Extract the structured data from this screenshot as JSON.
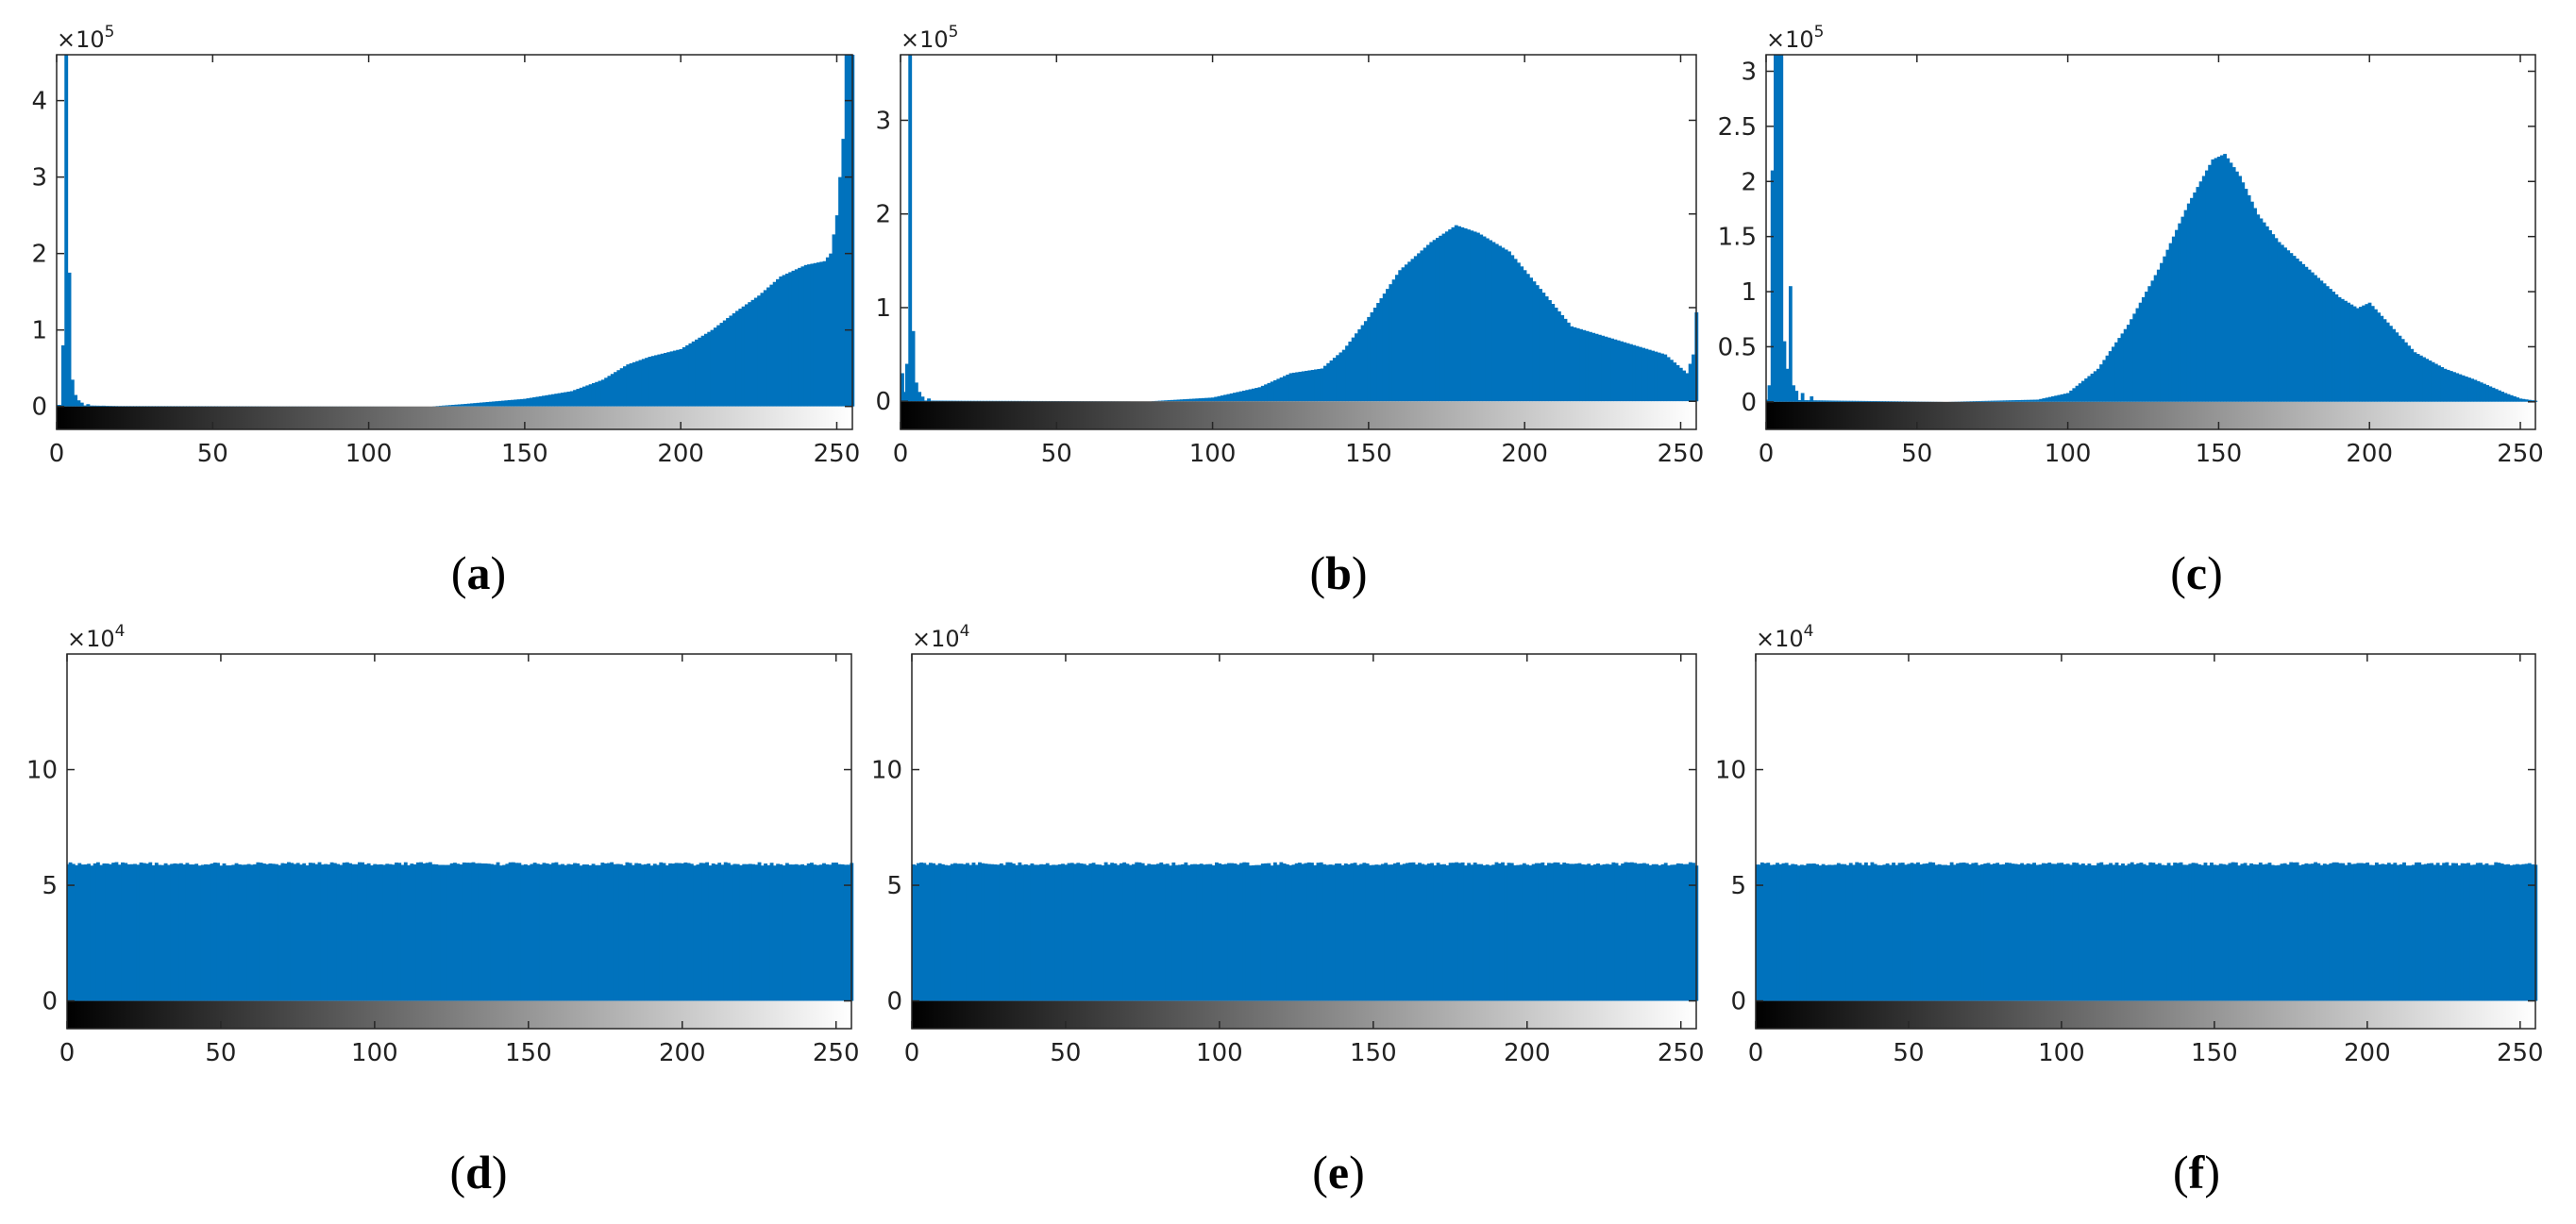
{
  "chart_data": [
    {
      "id": "a",
      "type": "bar",
      "caption_letter": "a",
      "multiplier": {
        "base": "×10",
        "exp": "5"
      },
      "xlim": [
        0,
        255
      ],
      "ylim": [
        -0.3,
        4.6
      ],
      "xticks": [
        0,
        50,
        100,
        150,
        200,
        250
      ],
      "yticks": [
        0,
        1,
        2,
        3,
        4
      ],
      "yticklabels": [
        "0",
        "1",
        "2",
        "3",
        "4"
      ],
      "color": "#0072BD",
      "peaks": [
        [
          2,
          0.8
        ],
        [
          3,
          4.6
        ],
        [
          4,
          1.75
        ],
        [
          5,
          0.35
        ],
        [
          6,
          0.15
        ],
        [
          7,
          0.08
        ],
        [
          8,
          0.05
        ],
        [
          10,
          0.03
        ],
        [
          15,
          0.01
        ]
      ],
      "curve": [
        [
          0,
          0.02
        ],
        [
          20,
          0.005
        ],
        [
          120,
          0.0
        ],
        [
          130,
          0.03
        ],
        [
          150,
          0.1
        ],
        [
          165,
          0.2
        ],
        [
          175,
          0.35
        ],
        [
          183,
          0.55
        ],
        [
          190,
          0.65
        ],
        [
          200,
          0.75
        ],
        [
          210,
          1.0
        ],
        [
          218,
          1.25
        ],
        [
          225,
          1.45
        ],
        [
          232,
          1.7
        ],
        [
          240,
          1.85
        ],
        [
          246,
          1.9
        ],
        [
          248,
          2.0
        ],
        [
          250,
          2.5
        ],
        [
          252,
          3.5
        ],
        [
          253,
          4.6
        ],
        [
          255,
          4.6
        ]
      ]
    },
    {
      "id": "b",
      "type": "bar",
      "caption_letter": "b",
      "multiplier": {
        "base": "×10",
        "exp": "5"
      },
      "xlim": [
        0,
        255
      ],
      "ylim": [
        -0.3,
        3.7
      ],
      "xticks": [
        0,
        50,
        100,
        150,
        200,
        250
      ],
      "yticks": [
        0,
        1,
        2,
        3
      ],
      "yticklabels": [
        "0",
        "1",
        "2",
        "3"
      ],
      "color": "#0072BD",
      "peaks": [
        [
          0,
          0.3
        ],
        [
          1,
          0.1
        ],
        [
          2,
          0.4
        ],
        [
          3,
          3.7
        ],
        [
          4,
          0.75
        ],
        [
          5,
          0.2
        ],
        [
          6,
          0.1
        ],
        [
          7,
          0.05
        ],
        [
          9,
          0.03
        ]
      ],
      "curve": [
        [
          0,
          0.01
        ],
        [
          20,
          0.005
        ],
        [
          80,
          0.0
        ],
        [
          100,
          0.04
        ],
        [
          115,
          0.15
        ],
        [
          125,
          0.3
        ],
        [
          135,
          0.35
        ],
        [
          142,
          0.55
        ],
        [
          150,
          0.9
        ],
        [
          160,
          1.4
        ],
        [
          170,
          1.7
        ],
        [
          178,
          1.88
        ],
        [
          185,
          1.8
        ],
        [
          195,
          1.6
        ],
        [
          205,
          1.2
        ],
        [
          215,
          0.8
        ],
        [
          225,
          0.7
        ],
        [
          235,
          0.6
        ],
        [
          245,
          0.5
        ],
        [
          252,
          0.3
        ],
        [
          254,
          0.5
        ],
        [
          255,
          0.95
        ]
      ]
    },
    {
      "id": "c",
      "type": "bar",
      "caption_letter": "c",
      "multiplier": {
        "base": "×10",
        "exp": "5"
      },
      "xlim": [
        0,
        255
      ],
      "ylim": [
        -0.25,
        3.15
      ],
      "xticks": [
        0,
        50,
        100,
        150,
        200,
        250
      ],
      "yticks": [
        0,
        0.5,
        1,
        1.5,
        2,
        2.5,
        3
      ],
      "yticklabels": [
        "0",
        "0.5",
        "1",
        "1.5",
        "2",
        "2.5",
        "3"
      ],
      "color": "#0072BD",
      "peaks": [
        [
          1,
          0.15
        ],
        [
          2,
          2.1
        ],
        [
          3,
          3.15
        ],
        [
          4,
          3.15
        ],
        [
          5,
          3.15
        ],
        [
          6,
          0.55
        ],
        [
          7,
          0.3
        ],
        [
          8,
          1.05
        ],
        [
          9,
          0.15
        ],
        [
          10,
          0.1
        ],
        [
          12,
          0.08
        ],
        [
          15,
          0.05
        ]
      ],
      "curve": [
        [
          0,
          0.02
        ],
        [
          25,
          0.01
        ],
        [
          60,
          0.0
        ],
        [
          90,
          0.02
        ],
        [
          100,
          0.08
        ],
        [
          110,
          0.3
        ],
        [
          120,
          0.7
        ],
        [
          130,
          1.2
        ],
        [
          140,
          1.8
        ],
        [
          148,
          2.2
        ],
        [
          152,
          2.25
        ],
        [
          157,
          2.05
        ],
        [
          163,
          1.7
        ],
        [
          170,
          1.45
        ],
        [
          180,
          1.2
        ],
        [
          190,
          0.95
        ],
        [
          196,
          0.85
        ],
        [
          200,
          0.9
        ],
        [
          205,
          0.75
        ],
        [
          215,
          0.45
        ],
        [
          225,
          0.3
        ],
        [
          235,
          0.2
        ],
        [
          245,
          0.08
        ],
        [
          250,
          0.03
        ],
        [
          255,
          0.01
        ]
      ]
    },
    {
      "id": "d",
      "type": "bar",
      "caption_letter": "d",
      "multiplier": {
        "base": "×10",
        "exp": "4"
      },
      "xlim": [
        0,
        255
      ],
      "ylim": [
        -1.2,
        15
      ],
      "xticks": [
        0,
        50,
        100,
        150,
        200,
        250
      ],
      "yticks": [
        0,
        5,
        10
      ],
      "yticklabels": [
        "0",
        "5",
        "10"
      ],
      "color": "#0072BD",
      "uniform_value": 6.0
    },
    {
      "id": "e",
      "type": "bar",
      "caption_letter": "e",
      "multiplier": {
        "base": "×10",
        "exp": "4"
      },
      "xlim": [
        0,
        255
      ],
      "ylim": [
        -1.2,
        15
      ],
      "xticks": [
        0,
        50,
        100,
        150,
        200,
        250
      ],
      "yticks": [
        0,
        5,
        10
      ],
      "yticklabels": [
        "0",
        "5",
        "10"
      ],
      "color": "#0072BD",
      "uniform_value": 6.0
    },
    {
      "id": "f",
      "type": "bar",
      "caption_letter": "f",
      "multiplier": {
        "base": "×10",
        "exp": "4"
      },
      "xlim": [
        0,
        255
      ],
      "ylim": [
        -1.2,
        15
      ],
      "xticks": [
        0,
        50,
        100,
        150,
        200,
        250
      ],
      "yticks": [
        0,
        5,
        10
      ],
      "yticklabels": [
        "0",
        "5",
        "10"
      ],
      "color": "#0072BD",
      "uniform_value": 6.0
    }
  ]
}
